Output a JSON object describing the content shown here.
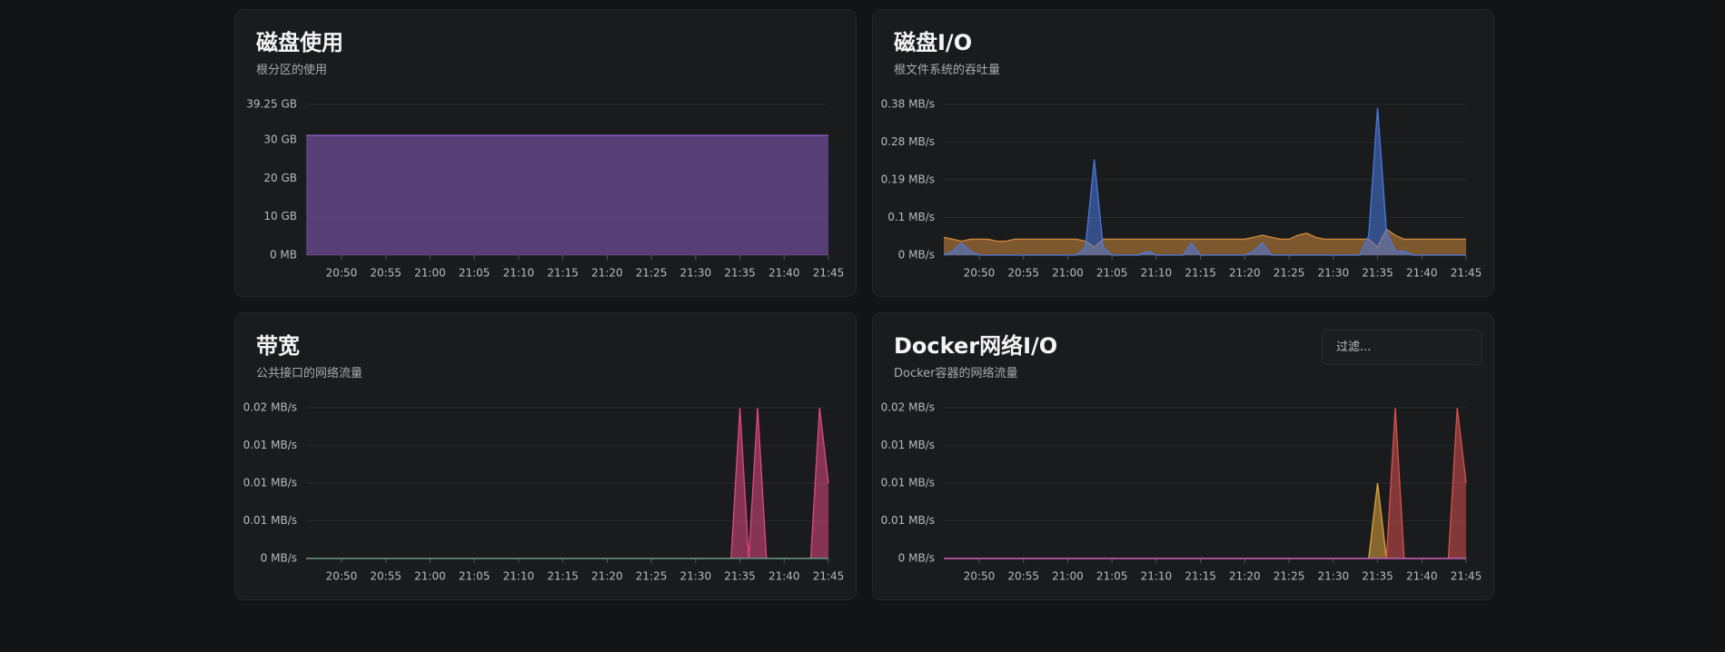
{
  "chart_data": [
    {
      "type": "area",
      "title": "磁盘使用",
      "subtitle": "根分区的使用",
      "x": [
        "20:46",
        "20:47",
        "20:48",
        "20:49",
        "20:50",
        "20:51",
        "20:52",
        "20:53",
        "20:54",
        "20:55",
        "20:56",
        "20:57",
        "20:58",
        "20:59",
        "21:00",
        "21:01",
        "21:02",
        "21:03",
        "21:04",
        "21:05",
        "21:06",
        "21:07",
        "21:08",
        "21:09",
        "21:10",
        "21:11",
        "21:12",
        "21:13",
        "21:14",
        "21:15",
        "21:16",
        "21:17",
        "21:18",
        "21:19",
        "21:20",
        "21:21",
        "21:22",
        "21:23",
        "21:24",
        "21:25",
        "21:26",
        "21:27",
        "21:28",
        "21:29",
        "21:30",
        "21:31",
        "21:32",
        "21:33",
        "21:34",
        "21:35",
        "21:36",
        "21:37",
        "21:38",
        "21:39",
        "21:40",
        "21:41",
        "21:42",
        "21:43",
        "21:44",
        "21:45"
      ],
      "xticks": [
        "20:50",
        "20:55",
        "21:00",
        "21:05",
        "21:10",
        "21:15",
        "21:20",
        "21:25",
        "21:30",
        "21:35",
        "21:40",
        "21:45"
      ],
      "ylim": [
        0,
        39.25
      ],
      "yticks": [
        {
          "value": 0,
          "label": "0 MB"
        },
        {
          "value": 10,
          "label": "10 GB"
        },
        {
          "value": 20,
          "label": "20 GB"
        },
        {
          "value": 30,
          "label": "30 GB"
        },
        {
          "value": 39.25,
          "label": "39.25 GB"
        }
      ],
      "grid": true,
      "series": [
        {
          "color": "#8a5cc0",
          "values": [
            31.2,
            31.2,
            31.2,
            31.2,
            31.2,
            31.2,
            31.2,
            31.2,
            31.2,
            31.2,
            31.2,
            31.2,
            31.2,
            31.2,
            31.2,
            31.2,
            31.2,
            31.2,
            31.2,
            31.2,
            31.2,
            31.2,
            31.2,
            31.2,
            31.2,
            31.2,
            31.2,
            31.2,
            31.2,
            31.2,
            31.2,
            31.2,
            31.2,
            31.2,
            31.2,
            31.2,
            31.2,
            31.2,
            31.2,
            31.2,
            31.2,
            31.2,
            31.2,
            31.2,
            31.2,
            31.2,
            31.2,
            31.2,
            31.2,
            31.2,
            31.2,
            31.2,
            31.2,
            31.2,
            31.2,
            31.2,
            31.2,
            31.2,
            31.2,
            31.2
          ]
        }
      ]
    },
    {
      "type": "area",
      "title": "磁盘I/O",
      "subtitle": "根文件系统的吞吐量",
      "x": [
        "20:46",
        "20:47",
        "20:48",
        "20:49",
        "20:50",
        "20:51",
        "20:52",
        "20:53",
        "20:54",
        "20:55",
        "20:56",
        "20:57",
        "20:58",
        "20:59",
        "21:00",
        "21:01",
        "21:02",
        "21:03",
        "21:04",
        "21:05",
        "21:06",
        "21:07",
        "21:08",
        "21:09",
        "21:10",
        "21:11",
        "21:12",
        "21:13",
        "21:14",
        "21:15",
        "21:16",
        "21:17",
        "21:18",
        "21:19",
        "21:20",
        "21:21",
        "21:22",
        "21:23",
        "21:24",
        "21:25",
        "21:26",
        "21:27",
        "21:28",
        "21:29",
        "21:30",
        "21:31",
        "21:32",
        "21:33",
        "21:34",
        "21:35",
        "21:36",
        "21:37",
        "21:38",
        "21:39",
        "21:40",
        "21:41",
        "21:42",
        "21:43",
        "21:44",
        "21:45"
      ],
      "xticks": [
        "20:50",
        "20:55",
        "21:00",
        "21:05",
        "21:10",
        "21:15",
        "21:20",
        "21:25",
        "21:30",
        "21:35",
        "21:40",
        "21:45"
      ],
      "ylim": [
        0,
        0.378
      ],
      "yticks": [
        {
          "value": 0,
          "label": "0 MB/s"
        },
        {
          "value": 0.0945,
          "label": "0.1 MB/s"
        },
        {
          "value": 0.189,
          "label": "0.19 MB/s"
        },
        {
          "value": 0.2835,
          "label": "0.28 MB/s"
        },
        {
          "value": 0.378,
          "label": "0.38 MB/s"
        }
      ],
      "grid": true,
      "series": [
        {
          "color": "#d08a3c",
          "values": [
            0.045,
            0.04,
            0.035,
            0.04,
            0.04,
            0.04,
            0.035,
            0.035,
            0.04,
            0.04,
            0.04,
            0.04,
            0.04,
            0.04,
            0.04,
            0.04,
            0.035,
            0.02,
            0.04,
            0.04,
            0.04,
            0.04,
            0.04,
            0.04,
            0.04,
            0.04,
            0.04,
            0.04,
            0.04,
            0.04,
            0.04,
            0.04,
            0.04,
            0.04,
            0.04,
            0.045,
            0.05,
            0.045,
            0.04,
            0.04,
            0.05,
            0.055,
            0.045,
            0.04,
            0.04,
            0.04,
            0.04,
            0.04,
            0.04,
            0.02,
            0.065,
            0.05,
            0.04,
            0.04,
            0.04,
            0.04,
            0.04,
            0.04,
            0.04,
            0.04
          ]
        },
        {
          "color": "#4a78e0",
          "values": [
            0,
            0.01,
            0.03,
            0.01,
            0,
            0,
            0,
            0,
            0,
            0,
            0,
            0,
            0,
            0,
            0,
            0,
            0.02,
            0.24,
            0.02,
            0,
            0,
            0,
            0,
            0.01,
            0,
            0,
            0,
            0,
            0.03,
            0,
            0,
            0,
            0,
            0,
            0,
            0.01,
            0.03,
            0,
            0,
            0,
            0,
            0,
            0,
            0,
            0,
            0,
            0,
            0,
            0.05,
            0.37,
            0.06,
            0.01,
            0.01,
            0,
            0,
            0,
            0,
            0,
            0,
            0
          ]
        }
      ]
    },
    {
      "type": "area",
      "title": "带宽",
      "subtitle": "公共接口的网络流量",
      "x": [
        "20:46",
        "20:47",
        "20:48",
        "20:49",
        "20:50",
        "20:51",
        "20:52",
        "20:53",
        "20:54",
        "20:55",
        "20:56",
        "20:57",
        "20:58",
        "20:59",
        "21:00",
        "21:01",
        "21:02",
        "21:03",
        "21:04",
        "21:05",
        "21:06",
        "21:07",
        "21:08",
        "21:09",
        "21:10",
        "21:11",
        "21:12",
        "21:13",
        "21:14",
        "21:15",
        "21:16",
        "21:17",
        "21:18",
        "21:19",
        "21:20",
        "21:21",
        "21:22",
        "21:23",
        "21:24",
        "21:25",
        "21:26",
        "21:27",
        "21:28",
        "21:29",
        "21:30",
        "21:31",
        "21:32",
        "21:33",
        "21:34",
        "21:35",
        "21:36",
        "21:37",
        "21:38",
        "21:39",
        "21:40",
        "21:41",
        "21:42",
        "21:43",
        "21:44",
        "21:45"
      ],
      "xticks": [
        "20:50",
        "20:55",
        "21:00",
        "21:05",
        "21:10",
        "21:15",
        "21:20",
        "21:25",
        "21:30",
        "21:35",
        "21:40",
        "21:45"
      ],
      "ylim": [
        0,
        0.02
      ],
      "yticks": [
        {
          "value": 0,
          "label": "0 MB/s"
        },
        {
          "value": 0.005,
          "label": "0.01 MB/s"
        },
        {
          "value": 0.01,
          "label": "0.01 MB/s"
        },
        {
          "value": 0.015,
          "label": "0.01 MB/s"
        },
        {
          "value": 0.02,
          "label": "0.02 MB/s"
        }
      ],
      "grid": true,
      "series": [
        {
          "color": "#e0497f",
          "values": [
            0,
            0,
            0,
            0,
            0,
            0,
            0,
            0,
            0,
            0,
            0,
            0,
            0,
            0,
            0,
            0,
            0,
            0,
            0,
            0,
            0,
            0,
            0,
            0,
            0,
            0,
            0,
            0,
            0,
            0,
            0,
            0,
            0,
            0,
            0,
            0,
            0,
            0,
            0,
            0,
            0,
            0,
            0,
            0,
            0,
            0,
            0,
            0,
            0,
            0.02,
            0,
            0.02,
            0,
            0,
            0,
            0,
            0,
            0,
            0.02,
            0.01
          ]
        },
        {
          "color": "#5fb08a",
          "values": [
            0,
            0,
            0,
            0,
            0,
            0,
            0,
            0,
            0,
            0,
            0,
            0,
            0,
            0,
            0,
            0,
            0,
            0,
            0,
            0,
            0,
            0,
            0,
            0,
            0,
            0,
            0,
            0,
            0,
            0,
            0,
            0,
            0,
            0,
            0,
            0,
            0,
            0,
            0,
            0,
            0,
            0,
            0,
            0,
            0,
            0,
            0,
            0,
            0,
            0,
            0,
            0,
            0,
            0,
            0,
            0,
            0,
            0,
            0,
            0
          ]
        }
      ]
    },
    {
      "type": "area",
      "title": "Docker网络I/O",
      "subtitle": "Docker容器的网络流量",
      "x": [
        "20:46",
        "20:47",
        "20:48",
        "20:49",
        "20:50",
        "20:51",
        "20:52",
        "20:53",
        "20:54",
        "20:55",
        "20:56",
        "20:57",
        "20:58",
        "20:59",
        "21:00",
        "21:01",
        "21:02",
        "21:03",
        "21:04",
        "21:05",
        "21:06",
        "21:07",
        "21:08",
        "21:09",
        "21:10",
        "21:11",
        "21:12",
        "21:13",
        "21:14",
        "21:15",
        "21:16",
        "21:17",
        "21:18",
        "21:19",
        "21:20",
        "21:21",
        "21:22",
        "21:23",
        "21:24",
        "21:25",
        "21:26",
        "21:27",
        "21:28",
        "21:29",
        "21:30",
        "21:31",
        "21:32",
        "21:33",
        "21:34",
        "21:35",
        "21:36",
        "21:37",
        "21:38",
        "21:39",
        "21:40",
        "21:41",
        "21:42",
        "21:43",
        "21:44",
        "21:45"
      ],
      "xticks": [
        "20:50",
        "20:55",
        "21:00",
        "21:05",
        "21:10",
        "21:15",
        "21:20",
        "21:25",
        "21:30",
        "21:35",
        "21:40",
        "21:45"
      ],
      "ylim": [
        0,
        0.02
      ],
      "yticks": [
        {
          "value": 0,
          "label": "0 MB/s"
        },
        {
          "value": 0.005,
          "label": "0.01 MB/s"
        },
        {
          "value": 0.01,
          "label": "0.01 MB/s"
        },
        {
          "value": 0.015,
          "label": "0.01 MB/s"
        },
        {
          "value": 0.02,
          "label": "0.02 MB/s"
        }
      ],
      "grid": true,
      "series": [
        {
          "color": "#e0a53a",
          "values": [
            0,
            0,
            0,
            0,
            0,
            0,
            0,
            0,
            0,
            0,
            0,
            0,
            0,
            0,
            0,
            0,
            0,
            0,
            0,
            0,
            0,
            0,
            0,
            0,
            0,
            0,
            0,
            0,
            0,
            0,
            0,
            0,
            0,
            0,
            0,
            0,
            0,
            0,
            0,
            0,
            0,
            0,
            0,
            0,
            0,
            0,
            0,
            0,
            0,
            0.01,
            0,
            0,
            0,
            0,
            0,
            0,
            0,
            0,
            0,
            0
          ]
        },
        {
          "color": "#d9504f",
          "values": [
            0,
            0,
            0,
            0,
            0,
            0,
            0,
            0,
            0,
            0,
            0,
            0,
            0,
            0,
            0,
            0,
            0,
            0,
            0,
            0,
            0,
            0,
            0,
            0,
            0,
            0,
            0,
            0,
            0,
            0,
            0,
            0,
            0,
            0,
            0,
            0,
            0,
            0,
            0,
            0,
            0,
            0,
            0,
            0,
            0,
            0,
            0,
            0,
            0,
            0,
            0,
            0.02,
            0,
            0,
            0,
            0,
            0,
            0,
            0.02,
            0.01
          ]
        },
        {
          "color": "#c45ad6",
          "values": [
            0,
            0,
            0,
            0,
            0,
            0,
            0,
            0,
            0,
            0,
            0,
            0,
            0,
            0,
            0,
            0,
            0,
            0,
            0,
            0,
            0,
            0,
            0,
            0,
            0,
            0,
            0,
            0,
            0,
            0,
            0,
            0,
            0,
            0,
            0,
            0,
            0,
            0,
            0,
            0,
            0,
            0,
            0,
            0,
            0,
            0,
            0,
            0,
            0,
            0,
            0,
            0,
            0,
            0,
            0,
            0,
            0,
            0,
            0,
            0
          ]
        }
      ]
    }
  ],
  "filter": {
    "placeholder": "过滤..."
  }
}
